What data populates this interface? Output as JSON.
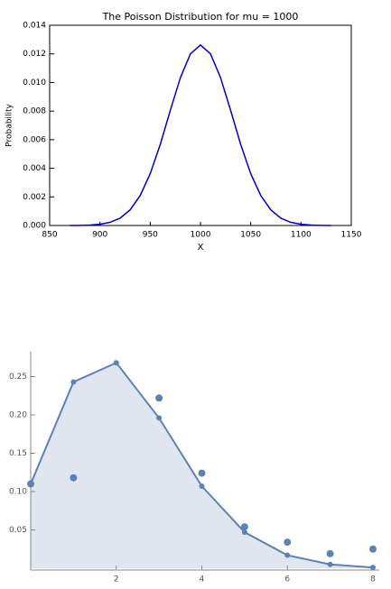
{
  "chart_data": [
    {
      "type": "line",
      "title": "The Poisson Distribution for mu = 1000",
      "xlabel": "X",
      "ylabel": "Probability",
      "color": "#0000cc",
      "x": [
        870,
        880,
        890,
        900,
        910,
        920,
        930,
        940,
        950,
        960,
        970,
        980,
        990,
        1000,
        1010,
        1020,
        1030,
        1040,
        1050,
        1060,
        1070,
        1080,
        1090,
        1100,
        1110,
        1120,
        1130
      ],
      "values": [
        0,
        1e-05,
        3e-05,
        9e-05,
        0.00022,
        0.00051,
        0.00109,
        0.00209,
        0.00362,
        0.00567,
        0.00805,
        0.01033,
        0.012,
        0.01262,
        0.012,
        0.01033,
        0.00805,
        0.00567,
        0.00362,
        0.00209,
        0.00109,
        0.00051,
        0.00022,
        9e-05,
        3e-05,
        1e-05,
        0
      ],
      "xlim": [
        850,
        1150
      ],
      "xticks": [
        850,
        900,
        950,
        1000,
        1050,
        1100,
        1150
      ],
      "ylim": [
        0,
        0.014
      ],
      "yticks": [
        {
          "value": 0,
          "label": "0.000"
        },
        0.002,
        0.004,
        0.006,
        0.008,
        {
          "value": 0.01,
          "label": "0.010"
        },
        0.012,
        0.014
      ]
    },
    {
      "type": "area",
      "x": [
        0,
        1,
        2,
        3,
        4,
        5,
        6,
        7,
        8
      ],
      "series": [
        {
          "style": "area",
          "color": "#5e81b5",
          "values": [
            0.11,
            0.243,
            0.268,
            0.196,
            0.107,
            0.047,
            0.017,
            0.005,
            0.001
          ]
        },
        {
          "style": "points",
          "color": "#5e81b5",
          "values": [
            0.11,
            0.118,
            null,
            0.222,
            0.124,
            0.054,
            0.034,
            0.019,
            0.025
          ]
        }
      ],
      "xlim": [
        0,
        8
      ],
      "xticks": [
        2,
        4,
        6,
        8
      ],
      "ylim": [
        0,
        0.28
      ],
      "yticks": [
        0.05,
        {
          "value": 0.1,
          "label": "0.10"
        },
        0.15,
        {
          "value": 0.2,
          "label": "0.20"
        },
        0.25
      ]
    }
  ]
}
